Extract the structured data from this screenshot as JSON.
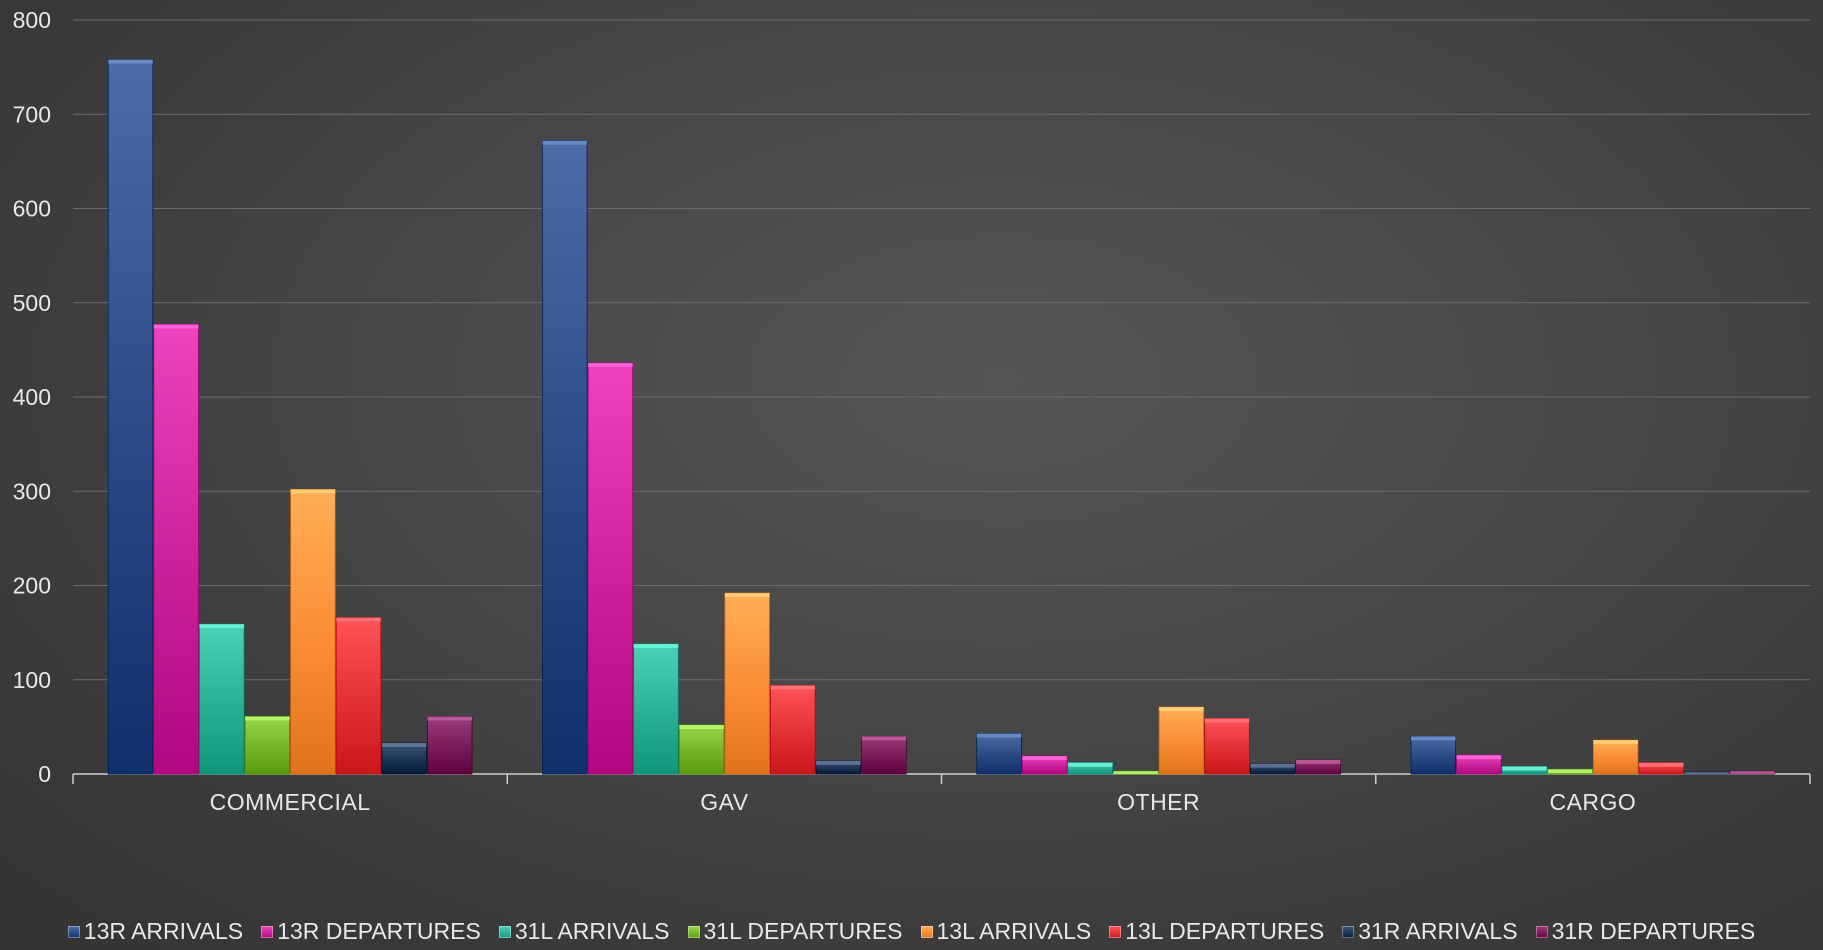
{
  "chart_data": {
    "type": "bar",
    "categories": [
      "COMMERCIAL",
      "GAV",
      "OTHER",
      "CARGO"
    ],
    "ylim": [
      0,
      800
    ],
    "yticks": [
      0,
      100,
      200,
      300,
      400,
      500,
      600,
      700,
      800
    ],
    "grid": true,
    "legend_position": "bottom",
    "series": [
      {
        "name": "13R ARRIVALS",
        "color": "#1f3f7a",
        "values": [
          758,
          672,
          43,
          40
        ]
      },
      {
        "name": "13R DEPARTURES",
        "color": "#c0168f",
        "values": [
          477,
          436,
          19,
          20
        ]
      },
      {
        "name": "31L ARRIVALS",
        "color": "#1fa58a",
        "values": [
          159,
          138,
          12,
          8
        ]
      },
      {
        "name": "31L DEPARTURES",
        "color": "#6aaa1e",
        "values": [
          61,
          52,
          3,
          5
        ]
      },
      {
        "name": "13L ARRIVALS",
        "color": "#f0822a",
        "values": [
          302,
          192,
          71,
          36
        ]
      },
      {
        "name": "13L DEPARTURES",
        "color": "#d8262a",
        "values": [
          166,
          94,
          59,
          12
        ]
      },
      {
        "name": "31R ARRIVALS",
        "color": "#13294a",
        "values": [
          33,
          14,
          11,
          2
        ]
      },
      {
        "name": "31R DEPARTURES",
        "color": "#6e0f4e",
        "values": [
          61,
          40,
          15,
          3
        ]
      }
    ]
  }
}
